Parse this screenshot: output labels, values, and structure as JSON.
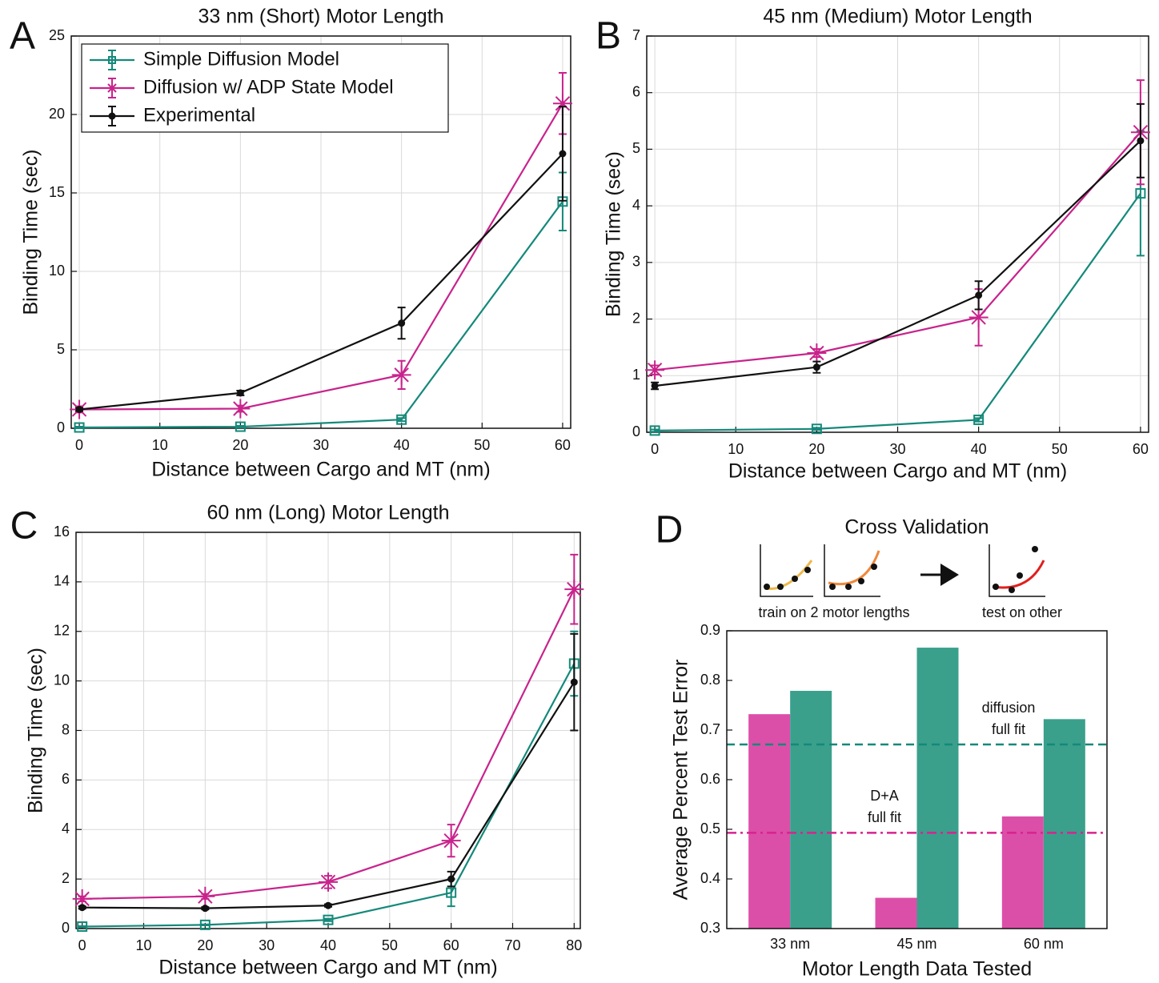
{
  "chart_data": [
    {
      "type": "line",
      "panel": "A",
      "title": "33 nm (Short) Motor Length",
      "title_color": "#efb84a",
      "xlabel": "Distance between Cargo and MT (nm)",
      "ylabel": "Binding Time (sec)",
      "x": [
        0,
        20,
        40,
        60
      ],
      "xlim": [
        -1,
        61
      ],
      "xticks": [
        0,
        10,
        20,
        30,
        40,
        50,
        60
      ],
      "ylim": [
        0,
        25
      ],
      "yticks": [
        0,
        5,
        10,
        15,
        20,
        25
      ],
      "grid": true,
      "legend": "upper left",
      "series": [
        {
          "name": "Simple Diffusion Model",
          "color": "#14897a",
          "marker": "square",
          "values": [
            0.05,
            0.1,
            0.55,
            14.45
          ],
          "errors": [
            0.05,
            0.05,
            0.1,
            1.85
          ]
        },
        {
          "name": "Diffusion w/ ADP State Model",
          "color": "#c8238c",
          "marker": "asterisk",
          "values": [
            1.2,
            1.25,
            3.4,
            20.7
          ],
          "errors": [
            0.2,
            0.2,
            0.9,
            1.95
          ]
        },
        {
          "name": "Experimental",
          "color": "#111111",
          "marker": "dot",
          "values": [
            1.2,
            2.25,
            6.7,
            17.5
          ],
          "errors": [
            0.1,
            0.15,
            1.0,
            3.0
          ]
        }
      ]
    },
    {
      "type": "line",
      "panel": "B",
      "title": "45 nm (Medium) Motor Length",
      "title_color": "#f0883a",
      "xlabel": "Distance between Cargo and MT (nm)",
      "ylabel": "Binding Time (sec)",
      "x": [
        0,
        20,
        40,
        60
      ],
      "xlim": [
        -1,
        61
      ],
      "xticks": [
        0,
        10,
        20,
        30,
        40,
        50,
        60
      ],
      "ylim": [
        0,
        7
      ],
      "yticks": [
        0,
        1,
        2,
        3,
        4,
        5,
        6,
        7
      ],
      "grid": true,
      "series": [
        {
          "color": "#14897a",
          "marker": "square",
          "values": [
            0.03,
            0.06,
            0.22,
            4.22
          ],
          "errors": [
            0.02,
            0.02,
            0.03,
            1.1
          ]
        },
        {
          "color": "#c8238c",
          "marker": "asterisk",
          "values": [
            1.1,
            1.4,
            2.03,
            5.3
          ],
          "errors": [
            0.08,
            0.07,
            0.5,
            0.92
          ]
        },
        {
          "color": "#111111",
          "marker": "dot",
          "values": [
            0.82,
            1.15,
            2.42,
            5.15
          ],
          "errors": [
            0.06,
            0.1,
            0.25,
            0.65
          ]
        }
      ]
    },
    {
      "type": "line",
      "panel": "C",
      "title": "60 nm (Long) Motor Length",
      "title_color": "#e0201e",
      "xlabel": "Distance between Cargo and MT (nm)",
      "ylabel": "Binding Time (sec)",
      "x": [
        0,
        20,
        40,
        60,
        80
      ],
      "xlim": [
        -1,
        81
      ],
      "xticks": [
        0,
        10,
        20,
        30,
        40,
        50,
        60,
        70,
        80
      ],
      "ylim": [
        0,
        16
      ],
      "yticks": [
        0,
        2,
        4,
        6,
        8,
        10,
        12,
        14,
        16
      ],
      "grid": true,
      "series": [
        {
          "color": "#14897a",
          "marker": "square",
          "values": [
            0.08,
            0.15,
            0.35,
            1.45,
            10.7
          ],
          "errors": [
            0.02,
            0.02,
            0.05,
            0.55,
            1.3
          ]
        },
        {
          "color": "#c8238c",
          "marker": "asterisk",
          "values": [
            1.2,
            1.3,
            1.88,
            3.55,
            13.7
          ],
          "errors": [
            0.1,
            0.1,
            0.25,
            0.65,
            1.4
          ]
        },
        {
          "color": "#111111",
          "marker": "dot",
          "values": [
            0.85,
            0.82,
            0.93,
            2.0,
            9.95
          ],
          "errors": [
            0.05,
            0.05,
            0.05,
            0.3,
            1.95
          ]
        }
      ]
    },
    {
      "type": "bar",
      "panel": "D",
      "title": "Cross Validation",
      "train_label": "train on 2 motor lengths",
      "test_label": "test on other",
      "xlabel": "Motor Length Data Tested",
      "ylabel": "Average Percent Test Error",
      "categories": [
        "33 nm",
        "45 nm",
        "60 nm"
      ],
      "category_colors": [
        "#efb84a",
        "#f0883a",
        "#e0201e"
      ],
      "ylim": [
        0.3,
        0.9
      ],
      "yticks": [
        0.3,
        0.4,
        0.5,
        0.6,
        0.7,
        0.8,
        0.9
      ],
      "grid": false,
      "series": [
        {
          "color": "#dc4fa8",
          "values": [
            0.732,
            0.362,
            0.526
          ]
        },
        {
          "color": "#3aa08c",
          "values": [
            0.779,
            0.866,
            0.722
          ]
        }
      ],
      "reference_lines": [
        {
          "value": 0.671,
          "color": "#14897a",
          "style": "dashed",
          "label": [
            "diffusion",
            "full fit"
          ]
        },
        {
          "value": 0.493,
          "color": "#d8238f",
          "style": "dashdot",
          "label": [
            "D+A",
            "full fit"
          ]
        }
      ]
    }
  ]
}
